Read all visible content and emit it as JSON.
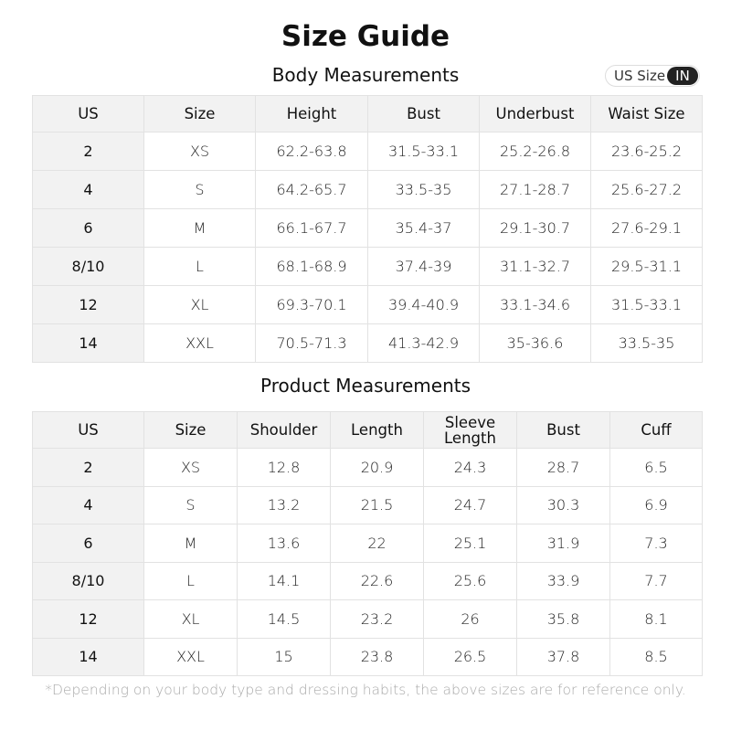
{
  "title": "Size Guide",
  "body": {
    "title": "Body Measurements",
    "headers": [
      "US",
      "Size",
      "Height",
      "Bust",
      "Underbust",
      "Waist Size"
    ],
    "rows": [
      [
        "2",
        "XS",
        "62.2-63.8",
        "31.5-33.1",
        "25.2-26.8",
        "23.6-25.2"
      ],
      [
        "4",
        "S",
        "64.2-65.7",
        "33.5-35",
        "27.1-28.7",
        "25.6-27.2"
      ],
      [
        "6",
        "M",
        "66.1-67.7",
        "35.4-37",
        "29.1-30.7",
        "27.6-29.1"
      ],
      [
        "8/10",
        "L",
        "68.1-68.9",
        "37.4-39",
        "31.1-32.7",
        "29.5-31.1"
      ],
      [
        "12",
        "XL",
        "69.3-70.1",
        "39.4-40.9",
        "33.1-34.6",
        "31.5-33.1"
      ],
      [
        "14",
        "XXL",
        "70.5-71.3",
        "41.3-42.9",
        "35-36.6",
        "33.5-35"
      ]
    ]
  },
  "unit_toggle": {
    "label": "US Size",
    "selected": "IN"
  },
  "product": {
    "title": "Product Measurements",
    "headers": [
      "US",
      "Size",
      "Shoulder",
      "Length",
      "Sleeve Length",
      "Bust",
      "Cuff"
    ],
    "rows": [
      [
        "2",
        "XS",
        "12.8",
        "20.9",
        "24.3",
        "28.7",
        "6.5"
      ],
      [
        "4",
        "S",
        "13.2",
        "21.5",
        "24.7",
        "30.3",
        "6.9"
      ],
      [
        "6",
        "M",
        "13.6",
        "22",
        "25.1",
        "31.9",
        "7.3"
      ],
      [
        "8/10",
        "L",
        "14.1",
        "22.6",
        "25.6",
        "33.9",
        "7.7"
      ],
      [
        "12",
        "XL",
        "14.5",
        "23.2",
        "26",
        "35.8",
        "8.1"
      ],
      [
        "14",
        "XXL",
        "15",
        "23.8",
        "26.5",
        "37.8",
        "8.5"
      ]
    ]
  },
  "note": "*Depending on your body type and dressing habits, the above sizes are for reference only."
}
